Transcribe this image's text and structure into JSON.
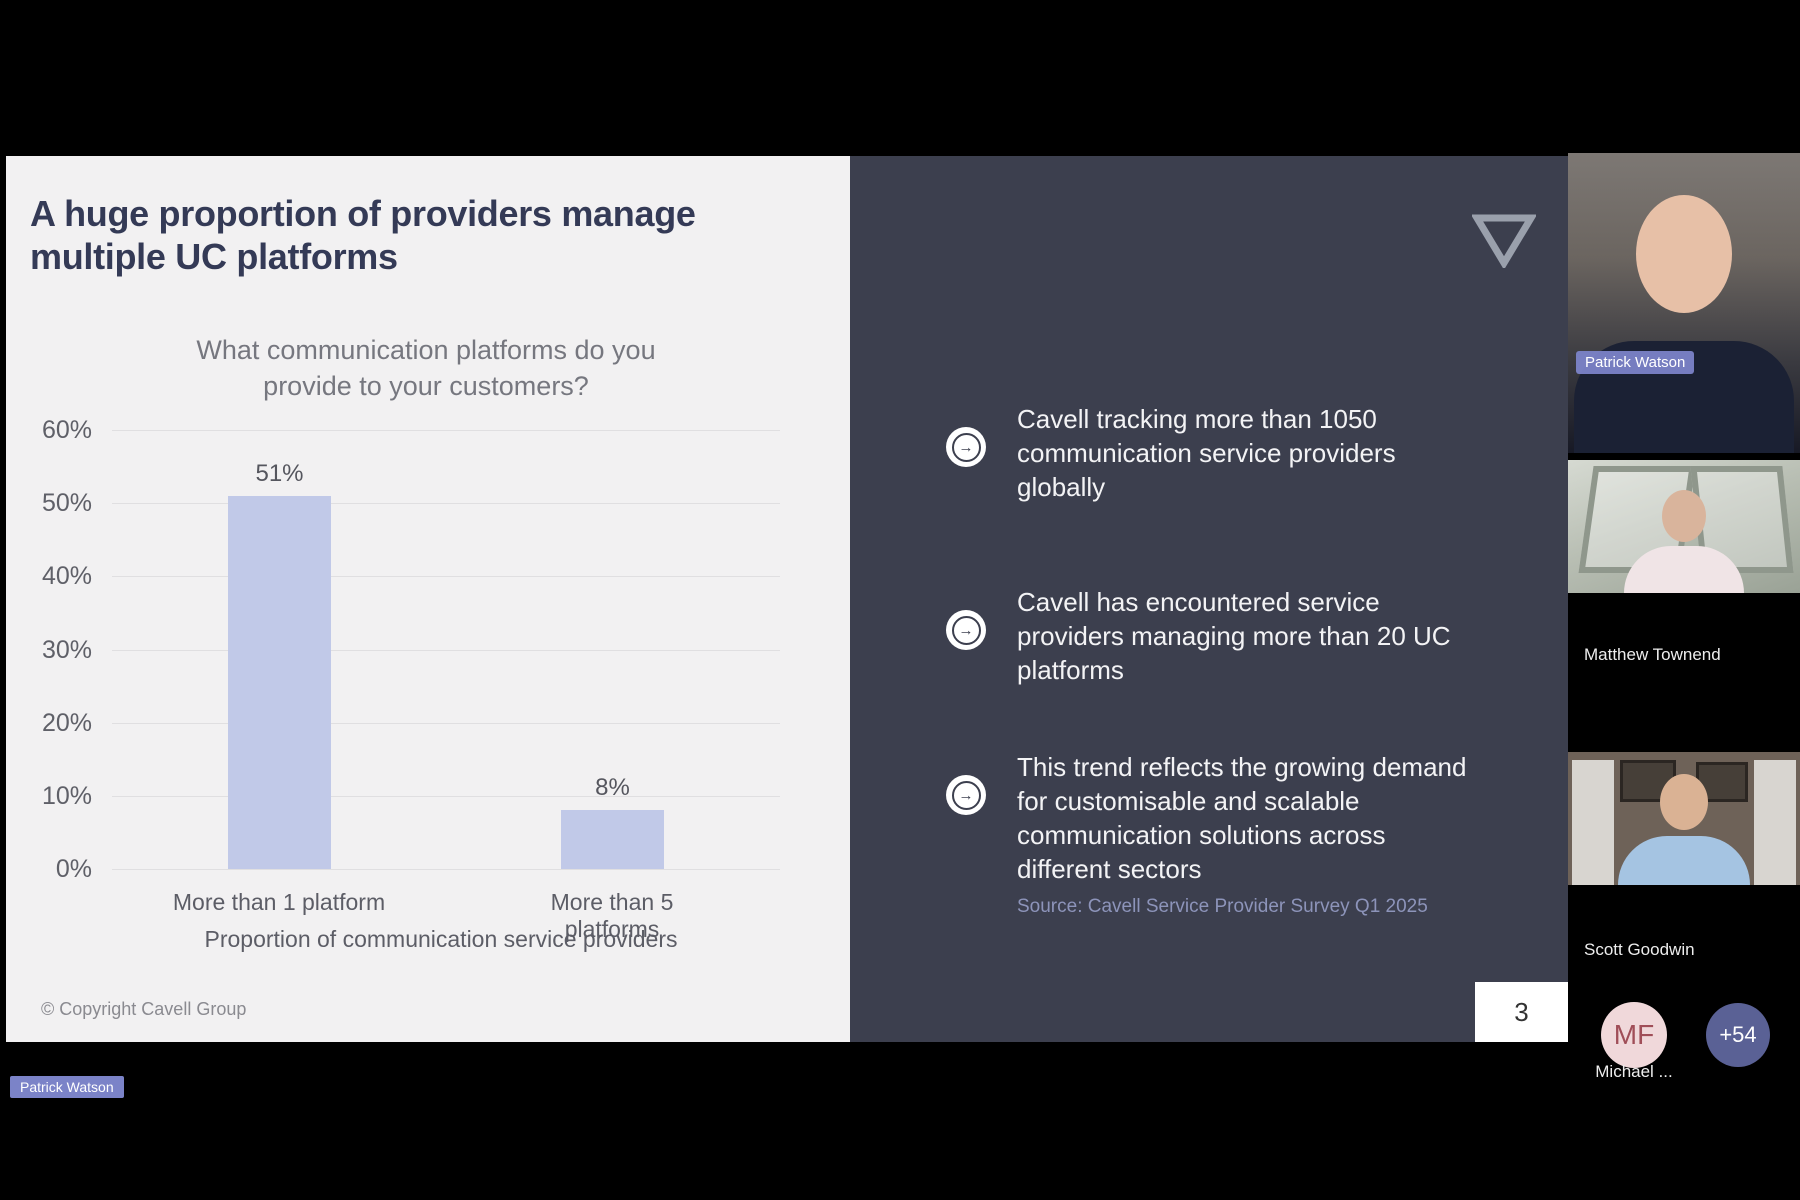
{
  "slide": {
    "title": "A huge proportion of providers manage\nmultiple UC platforms",
    "footer": "© Copyright Cavell Group",
    "page_number": "3",
    "logo_icon": "cavell-triangle-logo"
  },
  "panel": {
    "bullet_icon": "arrow-in-circle-icon",
    "bullets": [
      {
        "text": "Cavell tracking more than 1050 communication service providers globally"
      },
      {
        "text": "Cavell has encountered service providers managing more than 20 UC platforms"
      },
      {
        "text": "This trend reflects the growing demand for customisable and scalable communication solutions across different sectors"
      }
    ],
    "source": "Source: Cavell Service Provider Survey Q1 2025"
  },
  "chart_data": {
    "type": "bar",
    "title": "What communication platforms do you\nprovide to your customers?",
    "categories": [
      "More than 1 platform",
      "More than 5 platforms"
    ],
    "values": [
      51,
      8
    ],
    "value_labels": [
      "51%",
      "8%"
    ],
    "xlabel": "Proportion of communication service providers",
    "ylabel": "",
    "ylim": [
      0,
      60
    ],
    "yticks": [
      "60%",
      "50%",
      "40%",
      "30%",
      "20%",
      "10%",
      "0%"
    ],
    "grid": true,
    "legend": "none",
    "bar_color": "#c1c9e8"
  },
  "sidebar": {
    "participants": [
      {
        "name": "Patrick Watson",
        "type": "video",
        "overlay_label": "Patrick Watson"
      },
      {
        "name": "Matthew Townend",
        "type": "video"
      },
      {
        "name": "Scott Goodwin",
        "type": "video"
      },
      {
        "name": "Michael ...",
        "type": "avatar",
        "initials": "MF"
      }
    ],
    "overflow_badge": "+54"
  },
  "presenter_overlay": "Patrick Watson",
  "colors": {
    "slide_bg": "#f2f1f2",
    "panel_bg": "#3c3f4e",
    "bar": "#c1c9e8",
    "title_text": "#343a56",
    "name_tag_bg": "#7b83c8",
    "source_text": "#8d94ba",
    "mf_avatar_bg": "#f0d8da",
    "mf_avatar_text": "#a04e58",
    "overflow_badge_bg": "#5a6195"
  }
}
